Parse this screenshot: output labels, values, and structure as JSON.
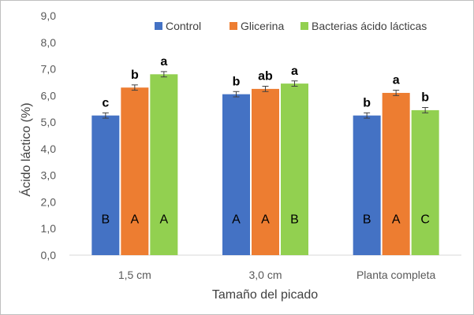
{
  "chart_data": {
    "type": "bar",
    "title": "",
    "xlabel": "Tamaño del picado",
    "ylabel": "Ácido láctico (%)",
    "ylim": [
      0,
      9
    ],
    "yticks": [
      "0,0",
      "1,0",
      "2,0",
      "3,0",
      "4,0",
      "5,0",
      "6,0",
      "7,0",
      "8,0",
      "9,0"
    ],
    "ytick_values": [
      0,
      1,
      2,
      3,
      4,
      5,
      6,
      7,
      8,
      9
    ],
    "grid": false,
    "legend_position": "top-right",
    "categories": [
      "1,5 cm",
      "3,0 cm",
      "Planta completa"
    ],
    "series": [
      {
        "name": "Control",
        "color": "#4472c4",
        "values": [
          5.25,
          6.05,
          5.25
        ],
        "errors": [
          0.1,
          0.1,
          0.1
        ],
        "letters_lower": [
          "c",
          "b",
          "b"
        ],
        "letters_upper": [
          "B",
          "A",
          "B"
        ]
      },
      {
        "name": "Glicerina",
        "color": "#ed7d31",
        "values": [
          6.3,
          6.25,
          6.1
        ],
        "errors": [
          0.1,
          0.1,
          0.1
        ],
        "letters_lower": [
          "b",
          "ab",
          "a"
        ],
        "letters_upper": [
          "A",
          "A",
          "A"
        ]
      },
      {
        "name": "Bacterias ácido lácticas",
        "color": "#92d050",
        "values": [
          6.8,
          6.45,
          5.45
        ],
        "errors": [
          0.1,
          0.1,
          0.1
        ],
        "letters_lower": [
          "a",
          "a",
          "b"
        ],
        "letters_upper": [
          "A",
          "B",
          "C"
        ]
      }
    ]
  }
}
